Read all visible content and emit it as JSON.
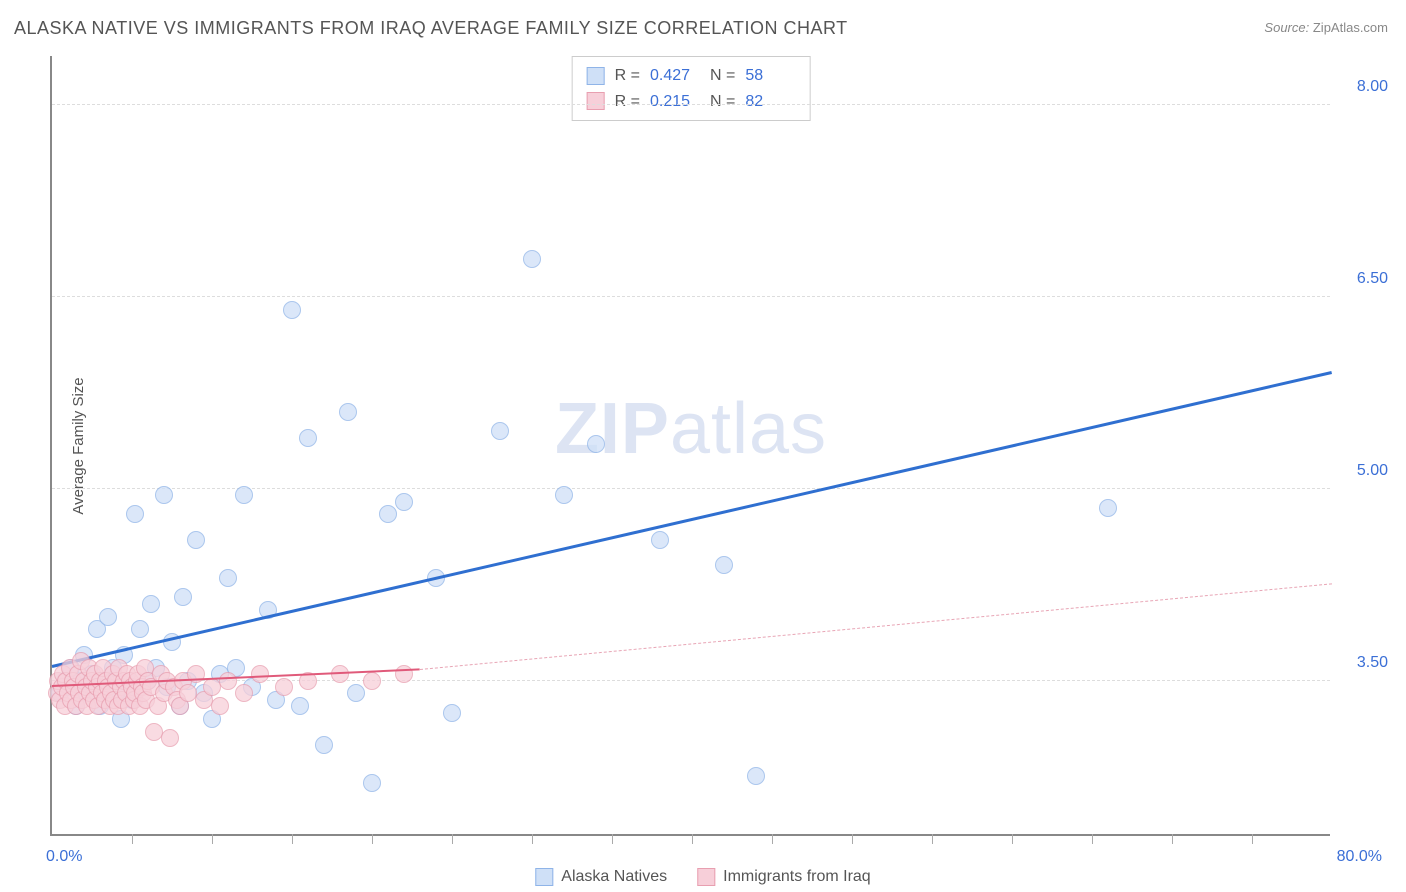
{
  "title": "ALASKA NATIVE VS IMMIGRANTS FROM IRAQ AVERAGE FAMILY SIZE CORRELATION CHART",
  "source": {
    "label": "Source:",
    "name": "ZipAtlas.com"
  },
  "ylabel": "Average Family Size",
  "watermark": {
    "bold": "ZIP",
    "rest": "atlas"
  },
  "chart": {
    "type": "scatter",
    "xlim": [
      0,
      80
    ],
    "ylim": [
      2.3,
      8.4
    ],
    "xtick_min": {
      "value": 0,
      "label": "0.0%"
    },
    "xtick_max": {
      "value": 80,
      "label": "80.0%"
    },
    "xticks_minor": [
      5,
      10,
      15,
      20,
      25,
      30,
      35,
      40,
      45,
      50,
      55,
      60,
      65,
      70,
      75
    ],
    "yticks": [
      {
        "value": 3.5,
        "label": "3.50"
      },
      {
        "value": 5.0,
        "label": "5.00"
      },
      {
        "value": 6.5,
        "label": "6.50"
      },
      {
        "value": 8.0,
        "label": "8.00"
      }
    ],
    "grid_color": "#dddddd",
    "background_color": "#ffffff",
    "series": [
      {
        "name": "Alaska Natives",
        "color_fill": "#cfe0f7",
        "color_stroke": "#8fb4e8",
        "marker_radius": 9,
        "r_label": "R =",
        "r_value": "0.427",
        "n_label": "N =",
        "n_value": "58",
        "trend": {
          "x1": 0,
          "y1": 3.6,
          "x2": 80,
          "y2": 5.9,
          "color": "#2f6fd0",
          "width": 3,
          "dashed": false
        },
        "points": [
          [
            0.5,
            3.4
          ],
          [
            0.8,
            3.5
          ],
          [
            1.0,
            3.45
          ],
          [
            1.2,
            3.6
          ],
          [
            1.5,
            3.3
          ],
          [
            1.8,
            3.5
          ],
          [
            2.0,
            3.7
          ],
          [
            2.2,
            3.4
          ],
          [
            2.5,
            3.55
          ],
          [
            2.8,
            3.9
          ],
          [
            3.0,
            3.3
          ],
          [
            3.2,
            3.5
          ],
          [
            3.5,
            4.0
          ],
          [
            3.8,
            3.6
          ],
          [
            4.0,
            3.4
          ],
          [
            4.3,
            3.2
          ],
          [
            4.5,
            3.7
          ],
          [
            5.0,
            3.35
          ],
          [
            5.2,
            4.8
          ],
          [
            5.5,
            3.9
          ],
          [
            6.0,
            3.5
          ],
          [
            6.2,
            4.1
          ],
          [
            6.5,
            3.6
          ],
          [
            7.0,
            4.95
          ],
          [
            7.2,
            3.45
          ],
          [
            7.5,
            3.8
          ],
          [
            8.0,
            3.3
          ],
          [
            8.2,
            4.15
          ],
          [
            8.5,
            3.5
          ],
          [
            9.0,
            4.6
          ],
          [
            9.5,
            3.4
          ],
          [
            10.0,
            3.2
          ],
          [
            10.5,
            3.55
          ],
          [
            11.0,
            4.3
          ],
          [
            11.5,
            3.6
          ],
          [
            12.0,
            4.95
          ],
          [
            12.5,
            3.45
          ],
          [
            13.5,
            4.05
          ],
          [
            14.0,
            3.35
          ],
          [
            15.0,
            6.4
          ],
          [
            15.5,
            3.3
          ],
          [
            16.0,
            5.4
          ],
          [
            17.0,
            3.0
          ],
          [
            18.5,
            5.6
          ],
          [
            19.0,
            3.4
          ],
          [
            20.0,
            2.7
          ],
          [
            21.0,
            4.8
          ],
          [
            22.0,
            4.9
          ],
          [
            24.0,
            4.3
          ],
          [
            25.0,
            3.25
          ],
          [
            28.0,
            5.45
          ],
          [
            30.0,
            6.8
          ],
          [
            32.0,
            4.95
          ],
          [
            34.0,
            5.35
          ],
          [
            38.0,
            4.6
          ],
          [
            42.0,
            4.4
          ],
          [
            44.0,
            2.75
          ],
          [
            66.0,
            4.85
          ]
        ]
      },
      {
        "name": "Immigrants from Iraq",
        "color_fill": "#f7cfd9",
        "color_stroke": "#e89fb0",
        "marker_radius": 9,
        "r_label": "R =",
        "r_value": "0.215",
        "n_label": "N =",
        "n_value": "82",
        "trend_solid": {
          "x1": 0,
          "y1": 3.45,
          "x2": 23,
          "y2": 3.58,
          "color": "#e05a7a",
          "width": 2,
          "dashed": false
        },
        "trend_dashed": {
          "x1": 23,
          "y1": 3.58,
          "x2": 80,
          "y2": 4.25,
          "color": "#e8a5b5",
          "width": 1,
          "dashed": true
        },
        "points": [
          [
            0.3,
            3.4
          ],
          [
            0.4,
            3.5
          ],
          [
            0.5,
            3.35
          ],
          [
            0.6,
            3.45
          ],
          [
            0.7,
            3.55
          ],
          [
            0.8,
            3.3
          ],
          [
            0.9,
            3.5
          ],
          [
            1.0,
            3.4
          ],
          [
            1.1,
            3.6
          ],
          [
            1.2,
            3.35
          ],
          [
            1.3,
            3.5
          ],
          [
            1.4,
            3.45
          ],
          [
            1.5,
            3.3
          ],
          [
            1.6,
            3.55
          ],
          [
            1.7,
            3.4
          ],
          [
            1.8,
            3.65
          ],
          [
            1.9,
            3.35
          ],
          [
            2.0,
            3.5
          ],
          [
            2.1,
            3.45
          ],
          [
            2.2,
            3.3
          ],
          [
            2.3,
            3.6
          ],
          [
            2.4,
            3.4
          ],
          [
            2.5,
            3.5
          ],
          [
            2.6,
            3.35
          ],
          [
            2.7,
            3.55
          ],
          [
            2.8,
            3.45
          ],
          [
            2.9,
            3.3
          ],
          [
            3.0,
            3.5
          ],
          [
            3.1,
            3.4
          ],
          [
            3.2,
            3.6
          ],
          [
            3.3,
            3.35
          ],
          [
            3.4,
            3.5
          ],
          [
            3.5,
            3.45
          ],
          [
            3.6,
            3.3
          ],
          [
            3.7,
            3.4
          ],
          [
            3.8,
            3.55
          ],
          [
            3.9,
            3.35
          ],
          [
            4.0,
            3.5
          ],
          [
            4.1,
            3.3
          ],
          [
            4.2,
            3.6
          ],
          [
            4.3,
            3.45
          ],
          [
            4.4,
            3.35
          ],
          [
            4.5,
            3.5
          ],
          [
            4.6,
            3.4
          ],
          [
            4.7,
            3.55
          ],
          [
            4.8,
            3.3
          ],
          [
            4.9,
            3.5
          ],
          [
            5.0,
            3.45
          ],
          [
            5.1,
            3.35
          ],
          [
            5.2,
            3.4
          ],
          [
            5.3,
            3.5
          ],
          [
            5.4,
            3.55
          ],
          [
            5.5,
            3.3
          ],
          [
            5.6,
            3.45
          ],
          [
            5.7,
            3.4
          ],
          [
            5.8,
            3.6
          ],
          [
            5.9,
            3.35
          ],
          [
            6.0,
            3.5
          ],
          [
            6.2,
            3.45
          ],
          [
            6.4,
            3.1
          ],
          [
            6.6,
            3.3
          ],
          [
            6.8,
            3.55
          ],
          [
            7.0,
            3.4
          ],
          [
            7.2,
            3.5
          ],
          [
            7.4,
            3.05
          ],
          [
            7.6,
            3.45
          ],
          [
            7.8,
            3.35
          ],
          [
            8.0,
            3.3
          ],
          [
            8.2,
            3.5
          ],
          [
            8.5,
            3.4
          ],
          [
            9.0,
            3.55
          ],
          [
            9.5,
            3.35
          ],
          [
            10.0,
            3.45
          ],
          [
            10.5,
            3.3
          ],
          [
            11.0,
            3.5
          ],
          [
            12.0,
            3.4
          ],
          [
            13.0,
            3.55
          ],
          [
            14.5,
            3.45
          ],
          [
            16.0,
            3.5
          ],
          [
            18.0,
            3.55
          ],
          [
            20.0,
            3.5
          ],
          [
            22.0,
            3.55
          ]
        ]
      }
    ]
  }
}
